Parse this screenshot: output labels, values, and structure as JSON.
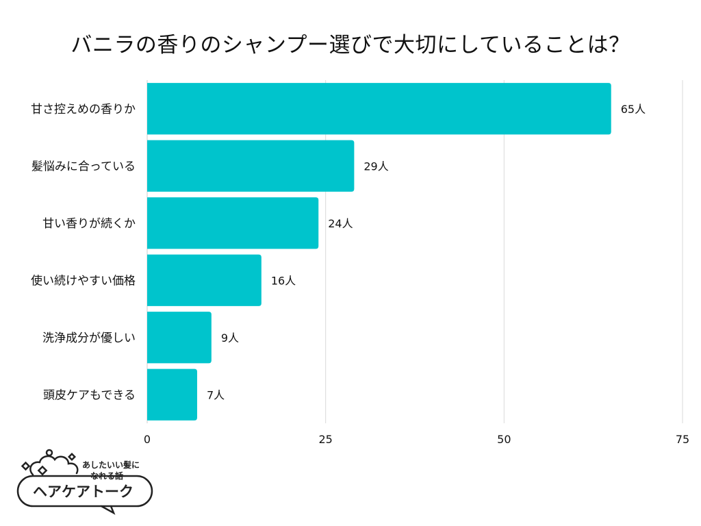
{
  "title": "バニラの香りのシャンプー選びで大切にしていることは？",
  "chart_data": {
    "type": "bar",
    "orientation": "horizontal",
    "categories": [
      "甘さ控えめの香りか",
      "髪悩みに合っている",
      "甘い香りが続くか",
      "使い続けやすい価格",
      "洗浄成分が優しい",
      "頭皮ケアもできる"
    ],
    "values": [
      65,
      29,
      24,
      16,
      9,
      7
    ],
    "value_suffix": "人",
    "xlim": [
      0,
      75
    ],
    "xticks": [
      0,
      25,
      50,
      75
    ],
    "grid": true,
    "bar_color": "#00C4CC",
    "grid_color": "#d9d9d9"
  },
  "logo": {
    "tagline_line1": "あしたいい髪に",
    "tagline_line2": "なれる話",
    "name": "ヘアケアトーク"
  }
}
